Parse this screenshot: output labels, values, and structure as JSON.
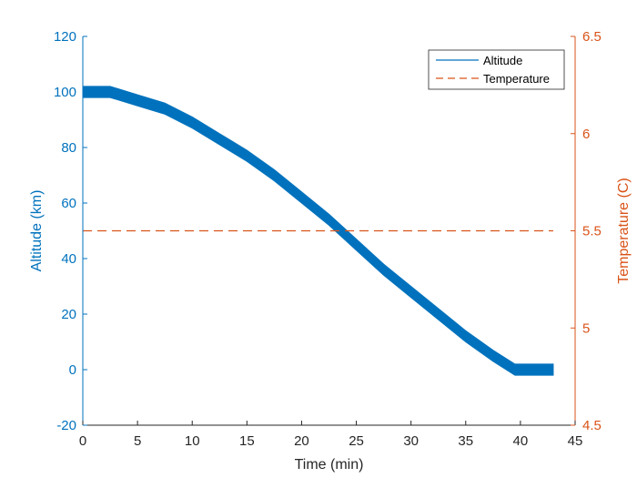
{
  "chart_data": {
    "type": "line",
    "xlabel": "Time (min)",
    "ylabel_left": "Altitude (km)",
    "ylabel_right": "Temperature (C)",
    "xlim": [
      0,
      45
    ],
    "ylim_left": [
      -20,
      120
    ],
    "ylim_right": [
      4.5,
      6.5
    ],
    "x_ticks": [
      0,
      5,
      10,
      15,
      20,
      25,
      30,
      35,
      40,
      45
    ],
    "y_left_ticks": [
      -20,
      0,
      20,
      40,
      60,
      80,
      100,
      120
    ],
    "y_right_ticks": [
      4.5,
      5,
      5.5,
      6,
      6.5
    ],
    "grid": false,
    "legend": {
      "placement": "top-right",
      "entries": [
        "Altitude",
        "Temperature"
      ]
    },
    "series": [
      {
        "name": "Altitude",
        "axis": "left",
        "color": "#0072BD",
        "style": "solid",
        "band_half_width": 2,
        "x": [
          0,
          2.5,
          5,
          7.5,
          10,
          12.5,
          15,
          17.5,
          20,
          22.5,
          25,
          27.5,
          30,
          32.5,
          35,
          37.5,
          39.5,
          41,
          43
        ],
        "values": [
          100,
          100,
          97,
          94,
          89,
          83,
          77,
          70,
          62,
          54,
          45,
          36,
          28,
          20,
          12,
          5,
          0,
          0,
          0
        ]
      },
      {
        "name": "Temperature",
        "axis": "right",
        "color": "#D95319",
        "style": "dashed",
        "x": [
          0,
          43
        ],
        "values": [
          5.5,
          5.5
        ]
      }
    ]
  },
  "colors": {
    "left_axis": "#0072BD",
    "right_axis": "#D95319"
  }
}
